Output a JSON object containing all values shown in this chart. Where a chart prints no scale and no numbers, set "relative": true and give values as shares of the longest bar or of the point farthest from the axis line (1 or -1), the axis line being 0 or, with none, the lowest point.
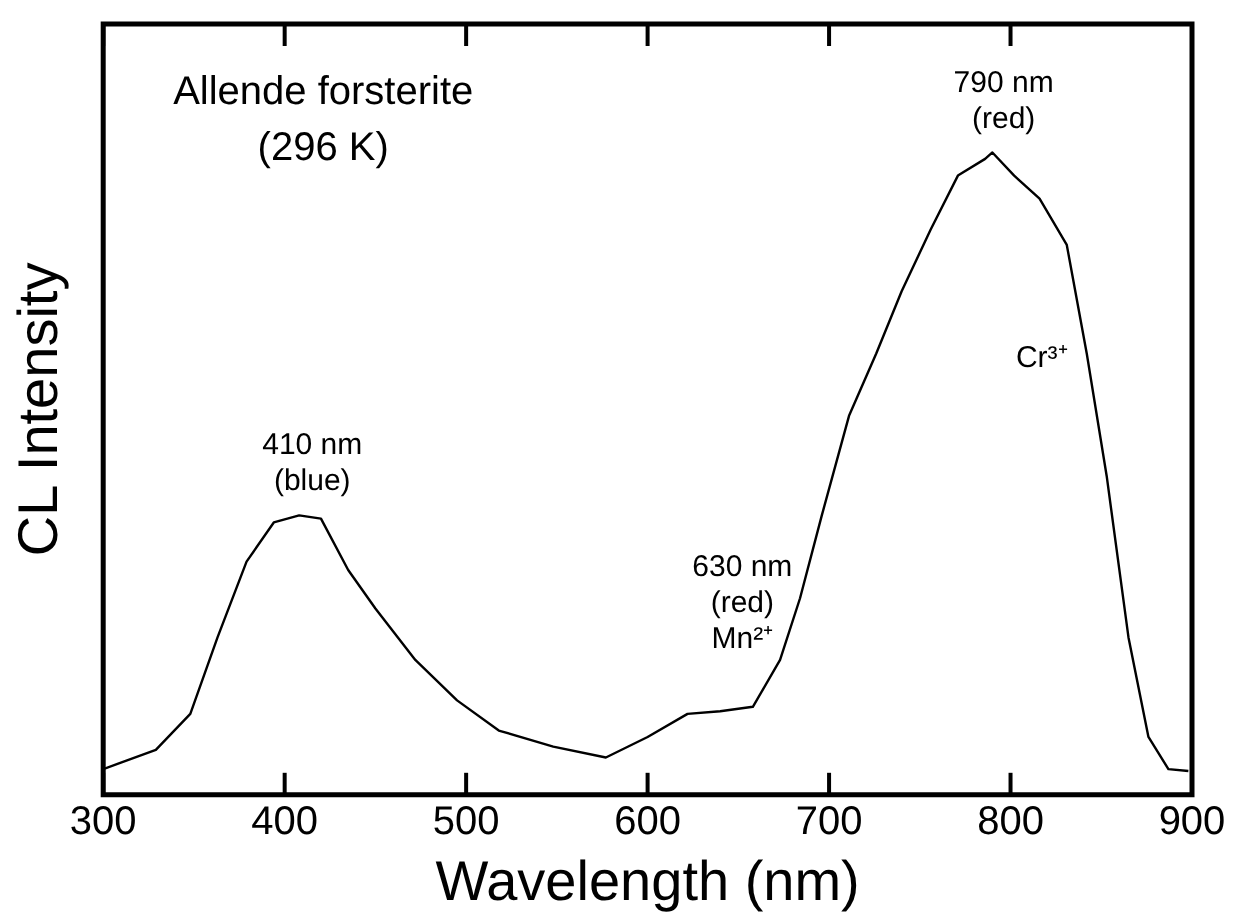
{
  "chart_data": {
    "type": "line",
    "title": "Allende forsterite",
    "subtitle": "(296 K)",
    "xlabel": "Wavelength (nm)",
    "ylabel": "CL Intensity",
    "relative": true,
    "grid": false,
    "legend": false,
    "marker": "none",
    "line_style": "solid",
    "xlim": [
      300,
      900
    ],
    "xticks": [
      300,
      400,
      500,
      600,
      700,
      800,
      900
    ],
    "series": [
      {
        "color": "#000000",
        "x": [
          300,
          329,
          348,
          363,
          379,
          394,
          408,
          420,
          435,
          450,
          472,
          495,
          518,
          548,
          577,
          600,
          622,
          640,
          658,
          673,
          684,
          696,
          711,
          726,
          740,
          756,
          771,
          786,
          790,
          802,
          816,
          831,
          842,
          853,
          865,
          876,
          887,
          898
        ],
        "values": [
          0.04,
          0.07,
          0.126,
          0.245,
          0.363,
          0.424,
          0.435,
          0.43,
          0.35,
          0.29,
          0.21,
          0.147,
          0.1,
          0.075,
          0.058,
          0.09,
          0.126,
          0.13,
          0.137,
          0.21,
          0.306,
          0.435,
          0.59,
          0.687,
          0.784,
          0.88,
          0.964,
          0.99,
          1,
          0.964,
          0.928,
          0.856,
          0.687,
          0.496,
          0.245,
          0.09,
          0.04,
          0.037
        ]
      }
    ],
    "annotations": [
      "410 nm\n(blue)",
      "630 nm\n(red)\nMn²⁺",
      "790 nm\n(red)",
      "Cr³⁺"
    ]
  }
}
